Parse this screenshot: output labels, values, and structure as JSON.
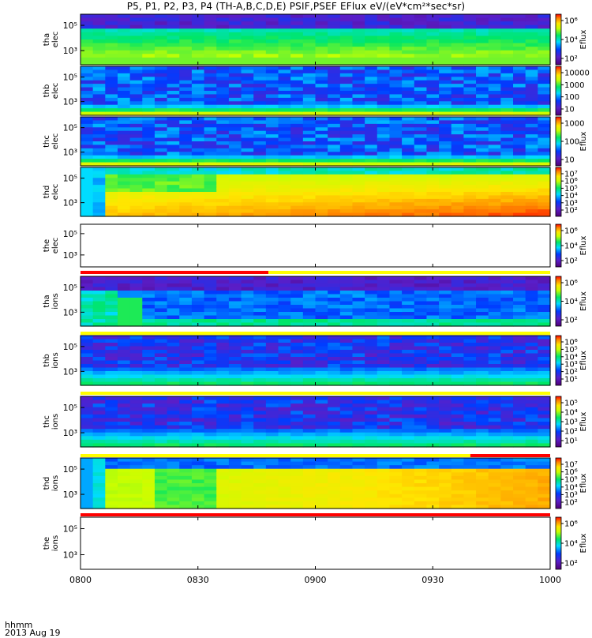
{
  "title": "P5, P1, P2, P3, P4 (TH-A,B,C,D,E) PSIF,PSEF EFlux eV/(eV*cm²*sec*sr)",
  "footer": {
    "time_label": "hhmm",
    "date_label": "2013 Aug 19"
  },
  "colors": {
    "flag_red": "#ff0000",
    "flag_yellow": "#ffff00"
  },
  "chart_data": {
    "type": "heatmap",
    "x_ticks": [
      "0800",
      "0830",
      "0900",
      "0930",
      "1000"
    ],
    "x_range": [
      "08:00",
      "10:00"
    ],
    "colormap": "rainbow (purple-blue-cyan-green-yellow-red)",
    "panels": [
      {
        "name": "tha elec",
        "ylabel": [
          "tha",
          "elec"
        ],
        "yscale": "log",
        "yticks": [
          "10⁵",
          "10³"
        ],
        "zlabel": "Eflux",
        "zticks": [
          "10⁶",
          "10⁴",
          "10²"
        ],
        "pattern": "elec_a",
        "flag_below": null
      },
      {
        "name": "thb elec",
        "ylabel": [
          "thb",
          "elec"
        ],
        "yscale": "log",
        "yticks": [
          "10⁵",
          "10³"
        ],
        "zlabel": "",
        "zticks": [
          "10000",
          "1000",
          "100",
          "10"
        ],
        "pattern": "noise",
        "flag_below": null
      },
      {
        "name": "thc elec",
        "ylabel": [
          "thc",
          "elec"
        ],
        "yscale": "log",
        "yticks": [
          "10⁵",
          "10³"
        ],
        "zlabel": "Eflux",
        "zticks": [
          "1000",
          "100",
          "10"
        ],
        "pattern": "noise",
        "flag_below": null
      },
      {
        "name": "thd elec",
        "ylabel": [
          "thd",
          "elec"
        ],
        "yscale": "log",
        "yticks": [
          "10⁵",
          "10³"
        ],
        "zlabel": "",
        "zticks": [
          "10⁷",
          "10⁶",
          "10⁵",
          "10⁴",
          "10³",
          "10²"
        ],
        "pattern": "hot",
        "flag_below": null
      },
      {
        "name": "the elec",
        "ylabel": [
          "the",
          "elec"
        ],
        "yscale": "log",
        "yticks": [
          "10⁵",
          "10³"
        ],
        "zlabel": "Eflux",
        "zticks": [
          "10⁶",
          "10⁴",
          "10²"
        ],
        "pattern": "empty",
        "flag_below": "red_then_yellow"
      },
      {
        "name": "tha ions",
        "ylabel": [
          "tha",
          "ions"
        ],
        "yscale": "log",
        "yticks": [
          "10⁵",
          "10³"
        ],
        "zlabel": "Eflux",
        "zticks": [
          "10⁶",
          "10⁴",
          "10²"
        ],
        "pattern": "ions_a",
        "flag_below": "yellow"
      },
      {
        "name": "thb ions",
        "ylabel": [
          "thb",
          "ions"
        ],
        "yscale": "log",
        "yticks": [
          "10⁵",
          "10³"
        ],
        "zlabel": "Eflux",
        "zticks": [
          "10⁶",
          "10⁵",
          "10⁴",
          "10³",
          "10²",
          "10¹"
        ],
        "pattern": "noise_ion",
        "flag_below": "yellow"
      },
      {
        "name": "thc ions",
        "ylabel": [
          "thc",
          "ions"
        ],
        "yscale": "log",
        "yticks": [
          "10⁵",
          "10³"
        ],
        "zlabel": "Eflux",
        "zticks": [
          "10⁵",
          "10⁴",
          "10³",
          "10²",
          "10¹"
        ],
        "pattern": "noise_ion",
        "flag_below": "yellow_then_red"
      },
      {
        "name": "thd ions",
        "ylabel": [
          "thd",
          "ions"
        ],
        "yscale": "log",
        "yticks": [
          "10⁵",
          "10³"
        ],
        "zlabel": "Eflux",
        "zticks": [
          "10⁷",
          "10⁶",
          "10⁵",
          "10⁴",
          "10³",
          "10²"
        ],
        "pattern": "hot_ion",
        "flag_below": "red"
      },
      {
        "name": "the ions",
        "ylabel": [
          "the",
          "ions"
        ],
        "yscale": "log",
        "yticks": [
          "10⁵",
          "10³"
        ],
        "zlabel": "Eflux",
        "zticks": [
          "10⁶",
          "10⁴",
          "10²"
        ],
        "pattern": "empty",
        "flag_below": null
      }
    ]
  }
}
